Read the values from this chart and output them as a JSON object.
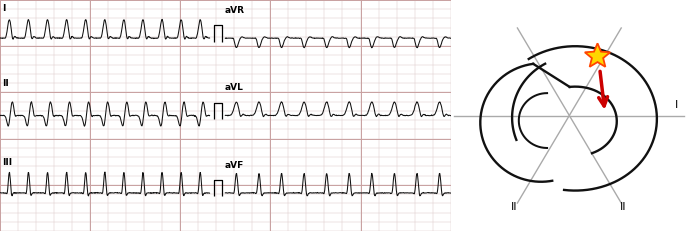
{
  "ecg_bg_color": "#eee8e8",
  "grid_major_color": "#c8a0a0",
  "grid_minor_color": "#ddc8c8",
  "ecg_line_color": "#111111",
  "star_color": "#FFD700",
  "star_edge_color": "#FF4500",
  "arrow_color": "#CC0000",
  "axis_line_color": "#aaaaaa",
  "heart_line_color": "#111111",
  "label_I": "I",
  "label_II": "II",
  "label_aVR": "aVR",
  "label_aVL": "aVL",
  "label_aVF": "aVF"
}
